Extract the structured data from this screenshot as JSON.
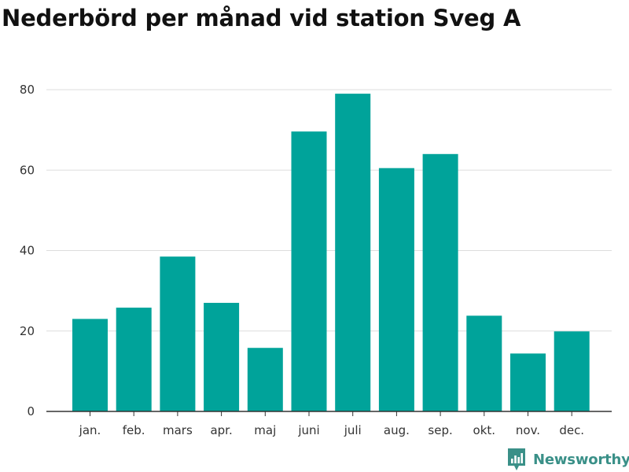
{
  "colors": {
    "bar": "#00a39a",
    "grid": "#dddddd",
    "axis": "#333333",
    "text": "#111111",
    "brand": "#3a9088"
  },
  "chart_data": {
    "type": "bar",
    "title": "Nederbörd per månad vid station Sveg A",
    "xlabel": "",
    "ylabel": "",
    "categories": [
      "jan.",
      "feb.",
      "mars",
      "apr.",
      "maj",
      "juni",
      "juli",
      "aug.",
      "sep.",
      "okt.",
      "nov.",
      "dec."
    ],
    "values": [
      23,
      25.8,
      38.5,
      27,
      15.8,
      69.6,
      79,
      60.5,
      64,
      23.8,
      14.4,
      19.9
    ],
    "ylim": [
      0,
      80
    ],
    "yticks": [
      0,
      20,
      40,
      60,
      80
    ],
    "grid": true,
    "legend": "none"
  },
  "brand": {
    "name": "Newsworthy",
    "icon": "newsworthy-logo-icon"
  }
}
